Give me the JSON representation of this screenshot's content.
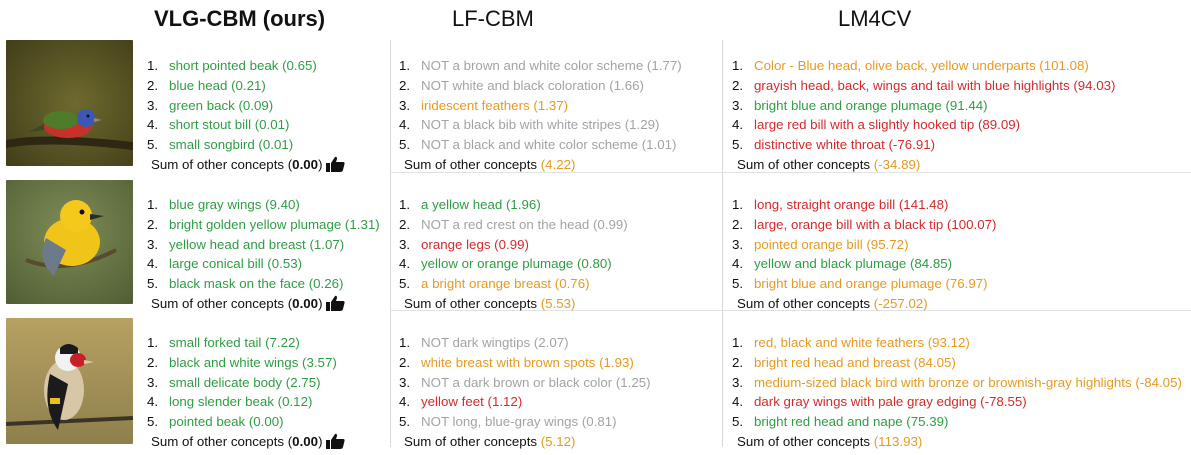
{
  "headers": {
    "vlg": "VLG-CBM (ours)",
    "lf": "LF-CBM",
    "lm": "LM4CV"
  },
  "colors": {
    "positive": "#2e9e43",
    "negated": "#a3a3a3",
    "questionable": "#e69a22",
    "wrong": "#d42a2a"
  },
  "rows": [
    {
      "image": "painted-bunting-photo",
      "vlg": {
        "items": [
          {
            "num": "1.",
            "text": "short pointed beak (0.65)",
            "color": "green"
          },
          {
            "num": "2.",
            "text": "blue head (0.21)",
            "color": "green"
          },
          {
            "num": "3.",
            "text": "green back (0.09)",
            "color": "green"
          },
          {
            "num": "4.",
            "text": "short stout bill (0.01)",
            "color": "green"
          },
          {
            "num": "5.",
            "text": "small songbird (0.01)",
            "color": "green"
          }
        ],
        "sum_label": "Sum of other concepts (",
        "sum_value": "0.00",
        "sum_close": ")"
      },
      "lf": {
        "items": [
          {
            "num": "1.",
            "text": "NOT a brown and white color scheme (1.77)",
            "color": "grey"
          },
          {
            "num": "2.",
            "text": "NOT white and black coloration (1.66)",
            "color": "grey"
          },
          {
            "num": "3.",
            "text": "iridescent feathers (1.37)",
            "color": "orange"
          },
          {
            "num": "4.",
            "text": "NOT a black bib with white stripes (1.29)",
            "color": "grey"
          },
          {
            "num": "5.",
            "text": "NOT a black and white color scheme (1.01)",
            "color": "grey"
          }
        ],
        "sum_label": "Sum of other concepts ",
        "sum_value": "(4.22)"
      },
      "lm": {
        "items": [
          {
            "num": "1.",
            "text": "Color - Blue head, olive back, yellow underparts (101.08)",
            "color": "orange"
          },
          {
            "num": "2.",
            "text": "grayish head, back, wings and tail with blue highlights (94.03)",
            "color": "red"
          },
          {
            "num": "3.",
            "text": "bright blue and orange plumage (91.44)",
            "color": "green"
          },
          {
            "num": "4.",
            "text": "large red bill with a slightly hooked tip  (89.09)",
            "color": "red"
          },
          {
            "num": "5.",
            "text": "distinctive white throat (-76.91)",
            "color": "red"
          }
        ],
        "sum_label": "Sum of other concepts ",
        "sum_value": "(-34.89)"
      }
    },
    {
      "image": "prothonotary-warbler-photo",
      "vlg": {
        "items": [
          {
            "num": "1.",
            "text": "blue gray wings (9.40)",
            "color": "green"
          },
          {
            "num": "2.",
            "text": "bright golden yellow plumage (1.31)",
            "color": "green"
          },
          {
            "num": "3.",
            "text": "yellow head and breast (1.07)",
            "color": "green"
          },
          {
            "num": "4.",
            "text": "large conical bill (0.53)",
            "color": "green"
          },
          {
            "num": "5.",
            "text": "black mask on the face (0.26)",
            "color": "green"
          }
        ],
        "sum_label": "Sum of other concepts (",
        "sum_value": "0.00",
        "sum_close": ")"
      },
      "lf": {
        "items": [
          {
            "num": "1.",
            "text": "a yellow head (1.96)",
            "color": "green"
          },
          {
            "num": "2.",
            "text": "NOT a red crest on the head (0.99)",
            "color": "grey"
          },
          {
            "num": "3.",
            "text": "orange legs (0.99)",
            "color": "red"
          },
          {
            "num": "4.",
            "text": "yellow or orange plumage (0.80)",
            "color": "green"
          },
          {
            "num": "5.",
            "text": "a bright orange breast (0.76)",
            "color": "orange"
          }
        ],
        "sum_label": "Sum of other concepts ",
        "sum_value": "(5.53)"
      },
      "lm": {
        "items": [
          {
            "num": "1.",
            "text": "long, straight orange bill  (141.48)",
            "color": "red"
          },
          {
            "num": "2.",
            "text": "large, orange bill with a black tip  (100.07)",
            "color": "red"
          },
          {
            "num": "3.",
            "text": "pointed orange bill  (95.72)",
            "color": "orange"
          },
          {
            "num": "4.",
            "text": "yellow and black plumage (84.85)",
            "color": "green"
          },
          {
            "num": "5.",
            "text": "bright blue and orange plumage (76.97)",
            "color": "orange"
          }
        ],
        "sum_label": "Sum of other concepts ",
        "sum_value": "(-257.02)"
      }
    },
    {
      "image": "goldfinch-photo",
      "vlg": {
        "items": [
          {
            "num": "1.",
            "text": "small forked tail (7.22)",
            "color": "green"
          },
          {
            "num": "2.",
            "text": "black and white wings (3.57)",
            "color": "green"
          },
          {
            "num": "3.",
            "text": "small delicate body (2.75)",
            "color": "green"
          },
          {
            "num": "4.",
            "text": "long slender beak (0.12)",
            "color": "green"
          },
          {
            "num": "5.",
            "text": "pointed beak (0.00)",
            "color": "green"
          }
        ],
        "sum_label": "Sum of other concepts (",
        "sum_value": "0.00",
        "sum_close": ")"
      },
      "lf": {
        "items": [
          {
            "num": "1.",
            "text": "NOT dark wingtips (2.07)",
            "color": "grey"
          },
          {
            "num": "2.",
            "text": "white breast with brown spots (1.93)",
            "color": "orange"
          },
          {
            "num": "3.",
            "text": "NOT a dark brown or black color (1.25)",
            "color": "grey"
          },
          {
            "num": "4.",
            "text": "yellow feet (1.12)",
            "color": "red"
          },
          {
            "num": "5.",
            "text": "NOT long, blue-gray wings (0.81)",
            "color": "grey"
          }
        ],
        "sum_label": "Sum of other concepts ",
        "sum_value": "(5.12)"
      },
      "lm": {
        "items": [
          {
            "num": "1.",
            "text": "red, black and white feathers (93.12)",
            "color": "orange"
          },
          {
            "num": "2.",
            "text": "bright red head and breast (84.05)",
            "color": "orange"
          },
          {
            "num": "3.",
            "text": "medium-sized black bird with bronze or brownish-gray highlights (-84.05)",
            "color": "orange"
          },
          {
            "num": "4.",
            "text": "dark gray wings with pale gray edging  (-78.55)",
            "color": "red"
          },
          {
            "num": "5.",
            "text": "bright red head and nape (75.39)",
            "color": "green"
          }
        ],
        "sum_label": "Sum of other concepts ",
        "sum_value": "(113.93)"
      }
    }
  ]
}
